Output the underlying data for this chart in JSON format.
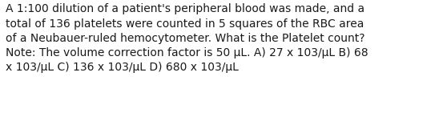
{
  "lines": [
    "A 1:100 dilution of a patient's peripheral blood was made, and a",
    "total of 136 platelets were counted in 5 squares of the RBC area",
    "of a Neubauer-ruled hemocytometer. What is the Platelet count?",
    "Note: The volume correction factor is 50 μL. A) 27 x 103/μL B) 68",
    "x 103/μL C) 136 x 103/μL D) 680 x 103/μL"
  ],
  "background_color": "#ffffff",
  "text_color": "#1a1a1a",
  "font_size": 10.0,
  "fig_width": 5.58,
  "fig_height": 1.46,
  "dpi": 100
}
